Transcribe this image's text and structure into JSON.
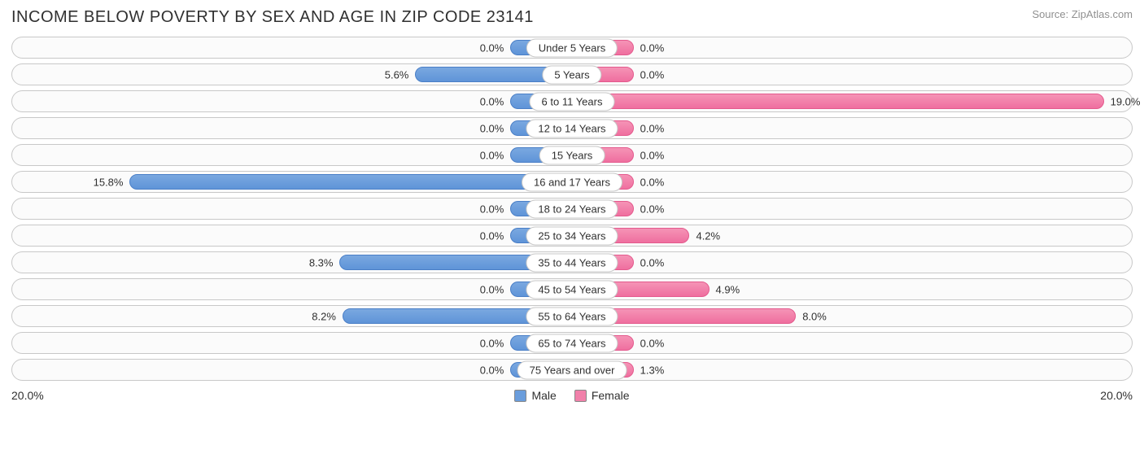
{
  "title": "INCOME BELOW POVERTY BY SEX AND AGE IN ZIP CODE 23141",
  "source": "Source: ZipAtlas.com",
  "chart": {
    "type": "diverging-bar",
    "axis_max": 20.0,
    "axis_label_left": "20.0%",
    "axis_label_right": "20.0%",
    "min_bar_percent": 2.2,
    "male_gradient": {
      "from": "#7aa8e0",
      "to": "#5f94d8",
      "border": "#4a7fc7"
    },
    "female_gradient": {
      "from": "#f593b6",
      "to": "#ef6f9f",
      "border": "#e45a8d"
    },
    "row_border": "#c8c8c8",
    "row_bg": "#fbfbfb",
    "categories": [
      {
        "label": "Under 5 Years",
        "male": 0.0,
        "female": 0.0
      },
      {
        "label": "5 Years",
        "male": 5.6,
        "female": 0.0
      },
      {
        "label": "6 to 11 Years",
        "male": 0.0,
        "female": 19.0
      },
      {
        "label": "12 to 14 Years",
        "male": 0.0,
        "female": 0.0
      },
      {
        "label": "15 Years",
        "male": 0.0,
        "female": 0.0
      },
      {
        "label": "16 and 17 Years",
        "male": 15.8,
        "female": 0.0
      },
      {
        "label": "18 to 24 Years",
        "male": 0.0,
        "female": 0.0
      },
      {
        "label": "25 to 34 Years",
        "male": 0.0,
        "female": 4.2
      },
      {
        "label": "35 to 44 Years",
        "male": 8.3,
        "female": 0.0
      },
      {
        "label": "45 to 54 Years",
        "male": 0.0,
        "female": 4.9
      },
      {
        "label": "55 to 64 Years",
        "male": 8.2,
        "female": 8.0
      },
      {
        "label": "65 to 74 Years",
        "male": 0.0,
        "female": 0.0
      },
      {
        "label": "75 Years and over",
        "male": 0.0,
        "female": 1.3
      }
    ]
  },
  "legend": {
    "male": {
      "label": "Male",
      "swatch": "#6a9ddc"
    },
    "female": {
      "label": "Female",
      "swatch": "#f180aa"
    }
  }
}
